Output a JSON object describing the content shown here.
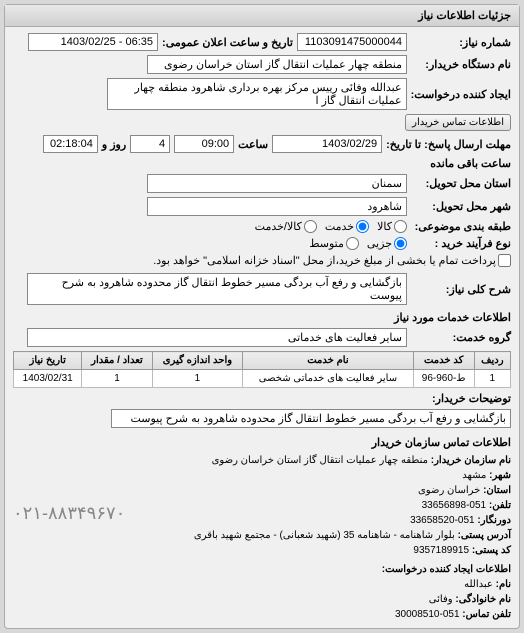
{
  "panel": {
    "title": "جزئیات اطلاعات نیاز"
  },
  "need": {
    "number_label": "شماره نیاز:",
    "number": "1103091475000044",
    "announce_label": "تاریخ و ساعت اعلان عمومی:",
    "announce": "06:35 - 1403/02/25",
    "buyer_label": "نام دستگاه خریدار:",
    "buyer": "منطقه چهار عملیات انتقال گاز   استان خراسان رضوی",
    "requester_label": "ایجاد کننده درخواست:",
    "requester": "عبدالله وفائی رییس مرکز بهره برداری شاهرود منطقه چهار عملیات انتقال گاز  ا",
    "contact_btn": "اطلاعات تماس خریدار",
    "deadline_label": "مهلت ارسال پاسخ: تا تاریخ:",
    "deadline_date": "1403/02/29",
    "time_label": "ساعت",
    "deadline_time": "09:00",
    "days_label": "روز و",
    "days": "4",
    "remain_label": "ساعت باقی مانده",
    "remain": "02:18:04",
    "province_label": "استان محل تحویل:",
    "province": "سمنان",
    "city_label": "شهر محل تحویل:",
    "city": "شاهرود",
    "budget_label": "طبقه بندی موضوعی:",
    "budget_opts": {
      "goods": "کالا",
      "service": "خدمت",
      "both": "کالا/خدمت"
    },
    "process_label": "نوع فرآیند خرید :",
    "process_opts": {
      "small": "جزیی",
      "medium": "متوسط"
    },
    "process_note": "پرداخت تمام یا بخشی از مبلغ خرید،از محل \"اسناد خزانه اسلامی\" خواهد بود.",
    "desc_label": "شرح کلی نیاز:",
    "desc": "بازگشایی و رفع آب بردگی مسیر خطوط انتقال گاز محدوده شاهرود به شرح پیوست"
  },
  "services": {
    "title": "اطلاعات خدمات مورد نیاز",
    "group_label": "گروه خدمت:",
    "group": "سایر فعالیت های خدماتی",
    "table": {
      "cols": [
        "ردیف",
        "کد خدمت",
        "نام خدمت",
        "واحد اندازه گیری",
        "تعداد / مقدار",
        "تاریخ نیاز"
      ],
      "rows": [
        [
          "1",
          "ط-960-96",
          "سایر فعالیت های خدماتی شخصی",
          "1",
          "1",
          "1403/02/31"
        ]
      ]
    },
    "buyer_note_label": "توضیحات خریدار:",
    "buyer_note": "بازگشایی و رفع آب بردگی مسیر خطوط انتقال گاز محدوده شاهرود به شرح پیوست"
  },
  "contact": {
    "title": "اطلاعات تماس سازمان خریدار",
    "org_label": "نام سازمان خریدار:",
    "org": "منطقه چهار عملیات انتقال گاز استان خراسان رضوی",
    "city_label": "شهر:",
    "city": "مشهد",
    "province_label": "استان:",
    "province": "خراسان رضوی",
    "phone_label": "تلفن:",
    "phone": "051-33656898",
    "fax_label": "دورنگار:",
    "fax": "051-33658520",
    "addr_label": "آدرس پستی:",
    "addr": "بلوار شاهنامه - شاهنامه 35 (شهید شعبانی) - مجتمع شهید باقری",
    "post_label": "کد پستی:",
    "post": "9357189915",
    "big_phone": "۰۲۱-۸۸۳۴۹۶۷۰",
    "creator_title": "اطلاعات ایجاد کننده درخواست:",
    "name_label": "نام:",
    "name": "عبدالله",
    "family_label": "نام خانوادگی:",
    "family": "وفائی",
    "cphone_label": "تلفن تماس:",
    "cphone": "051-30008510"
  }
}
